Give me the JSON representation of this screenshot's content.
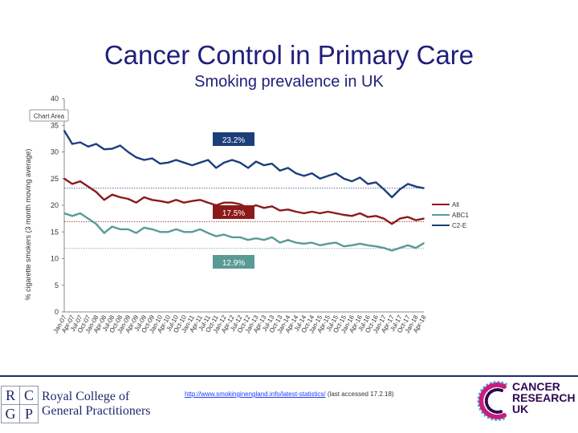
{
  "slide": {
    "title": "Cancer Control in Primary Care",
    "subtitle": "Smoking prevalence in UK"
  },
  "chart_data": {
    "type": "line",
    "badge_label": "Chart Area",
    "ylabel": "% cigarette smokers (3 month moving average)",
    "ylim": [
      0,
      40
    ],
    "yticks": [
      "0",
      "5",
      "10",
      "15",
      "20",
      "25",
      "30",
      "35",
      "40"
    ],
    "grid": false,
    "legend_position": "right",
    "x": [
      "Jan-07",
      "Apr-07",
      "Jul-07",
      "Oct-07",
      "Jan-08",
      "Apr-08",
      "Jul-08",
      "Oct-08",
      "Jan-09",
      "Apr-09",
      "Jul-09",
      "Oct-09",
      "Jan-10",
      "Apr-10",
      "Jul-10",
      "Oct-10",
      "Jan-11",
      "Apr-11",
      "Jul-11",
      "Oct-11",
      "Jan-12",
      "Apr-12",
      "Jul-12",
      "Oct-12",
      "Jan-13",
      "Apr-13",
      "Jul-13",
      "Oct-13",
      "Jan-14",
      "Apr-14",
      "Jul-14",
      "Oct-14",
      "Jan-15",
      "Apr-15",
      "Jul-15",
      "Oct-15",
      "Jan-16",
      "Apr-16",
      "Jul-16",
      "Oct-16",
      "Jan-17",
      "Apr-17",
      "Jul-17",
      "Oct-17",
      "Jan-18",
      "Apr-18"
    ],
    "series": [
      {
        "name": "C2-E",
        "color": "#1c3f7a",
        "values": [
          34.0,
          31.5,
          31.8,
          31.0,
          31.5,
          30.5,
          30.6,
          31.2,
          30.0,
          29.0,
          28.5,
          28.8,
          27.8,
          28.0,
          28.5,
          28.0,
          27.5,
          28.0,
          28.5,
          27.0,
          28.0,
          28.5,
          28.0,
          27.0,
          28.2,
          27.5,
          27.8,
          26.5,
          27.0,
          26.0,
          25.5,
          26.0,
          25.0,
          25.5,
          26.0,
          25.0,
          24.5,
          25.2,
          24.0,
          24.3,
          23.0,
          21.5,
          23.0,
          24.0,
          23.5,
          23.2
        ],
        "end_label": "23.2%",
        "reference": 23.2
      },
      {
        "name": "All",
        "color": "#8b1a1a",
        "values": [
          25.0,
          24.0,
          24.5,
          23.5,
          22.5,
          21.0,
          22.0,
          21.5,
          21.2,
          20.5,
          21.5,
          21.0,
          20.8,
          20.5,
          21.0,
          20.5,
          20.8,
          21.0,
          20.5,
          20.0,
          20.5,
          20.5,
          20.2,
          19.5,
          20.0,
          19.5,
          19.8,
          19.0,
          19.2,
          18.8,
          18.5,
          18.8,
          18.5,
          18.8,
          18.5,
          18.2,
          18.0,
          18.5,
          17.8,
          18.0,
          17.5,
          16.5,
          17.5,
          17.8,
          17.2,
          17.5
        ],
        "end_label": "17.5%",
        "reference": 16.9
      },
      {
        "name": "ABC1",
        "color": "#5a9a94",
        "values": [
          18.5,
          18.0,
          18.5,
          17.5,
          16.5,
          14.8,
          16.0,
          15.5,
          15.5,
          14.8,
          15.8,
          15.5,
          15.0,
          15.0,
          15.5,
          15.0,
          15.0,
          15.5,
          14.8,
          14.2,
          14.5,
          14.0,
          14.0,
          13.5,
          13.8,
          13.5,
          14.0,
          13.0,
          13.5,
          13.0,
          12.8,
          13.0,
          12.5,
          12.8,
          13.0,
          12.3,
          12.5,
          12.8,
          12.5,
          12.3,
          12.0,
          11.5,
          12.0,
          12.5,
          12.0,
          12.9
        ],
        "end_label": "12.9%",
        "reference": 11.9
      }
    ]
  },
  "footer": {
    "source_url": "http://www.smokinginengland.info/latest-statistics/",
    "source_note": "(last accessed 17.2.18)",
    "rcgp_letters": [
      "R",
      "C",
      "G",
      "P"
    ],
    "rcgp_name_line1": "Royal College of",
    "rcgp_name_line2": "General Practitioners",
    "cruk_line1": "CANCER",
    "cruk_line2": "RESEARCH",
    "cruk_line3": "UK"
  }
}
